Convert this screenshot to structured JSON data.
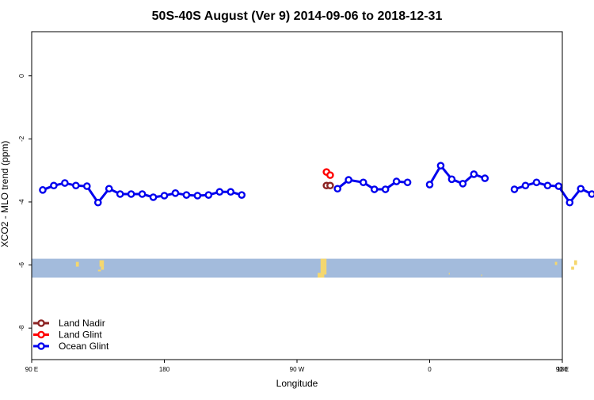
{
  "chart_data": {
    "type": "line",
    "title": "50S-40S August (Ver 9)   2014-09-06 to 2018-12-31",
    "xlabel": "Longitude",
    "ylabel": "XCO2 - MLO trend (ppm)",
    "xlim": [
      90,
      450
    ],
    "ylim": [
      -9.0,
      1.4
    ],
    "x_ticks": [
      {
        "value": 90,
        "label": "90 E"
      },
      {
        "value": 180,
        "label": "180"
      },
      {
        "value": 270,
        "label": "90 W"
      },
      {
        "value": 360,
        "label": "0"
      },
      {
        "value": 450,
        "label": "90 E"
      },
      {
        "value": 540,
        "label": "180"
      }
    ],
    "y_ticks": [
      {
        "value": 0,
        "label": "0"
      },
      {
        "value": -2,
        "label": "-2"
      },
      {
        "value": -4,
        "label": "-4"
      },
      {
        "value": -6,
        "label": "-6"
      },
      {
        "value": -8,
        "label": "-8"
      }
    ],
    "series": [
      {
        "name": "Land Nadir",
        "color": "#8b2323",
        "points": [
          [
            290,
            -3.48
          ],
          [
            292.5,
            -3.48
          ]
        ],
        "segments": [
          [
            0,
            1
          ]
        ]
      },
      {
        "name": "Land Glint",
        "color": "#ff0000",
        "points": [
          [
            290,
            -3.05
          ],
          [
            292.5,
            -3.15
          ]
        ],
        "segments": [
          [
            0,
            1
          ]
        ]
      },
      {
        "name": "Ocean Glint",
        "color": "#0000ee",
        "points": [
          [
            97.5,
            -3.62
          ],
          [
            105,
            -3.48
          ],
          [
            112.5,
            -3.4
          ],
          [
            120,
            -3.48
          ],
          [
            127.5,
            -3.5
          ],
          [
            135,
            -4.02
          ],
          [
            142.5,
            -3.58
          ],
          [
            150,
            -3.75
          ],
          [
            157.5,
            -3.75
          ],
          [
            165,
            -3.75
          ],
          [
            172.5,
            -3.85
          ],
          [
            180,
            -3.8
          ],
          [
            187.5,
            -3.72
          ],
          [
            195,
            -3.78
          ],
          [
            202.5,
            -3.8
          ],
          [
            210,
            -3.78
          ],
          [
            217.5,
            -3.68
          ],
          [
            225,
            -3.68
          ],
          [
            232.5,
            -3.78
          ],
          [
            297.5,
            -3.58
          ],
          [
            305,
            -3.3
          ],
          [
            315,
            -3.38
          ],
          [
            322.5,
            -3.6
          ],
          [
            330,
            -3.6
          ],
          [
            337.5,
            -3.35
          ],
          [
            345,
            -3.38
          ],
          [
            360,
            -3.45
          ],
          [
            367.5,
            -2.85
          ],
          [
            375,
            -3.28
          ],
          [
            382.5,
            -3.42
          ],
          [
            390,
            -3.12
          ],
          [
            397.5,
            -3.25
          ],
          [
            417.5,
            -3.6
          ],
          [
            425,
            -3.48
          ],
          [
            432.5,
            -3.38
          ],
          [
            440,
            -3.48
          ],
          [
            447.5,
            -3.5
          ],
          [
            455,
            -4.02
          ],
          [
            462.5,
            -3.58
          ],
          [
            470,
            -3.75
          ],
          [
            477.5,
            -3.75
          ]
        ],
        "segments": [
          [
            0,
            18
          ],
          [
            19,
            25
          ],
          [
            26,
            31
          ],
          [
            32,
            40
          ]
        ]
      }
    ],
    "background_band": {
      "y_from": -5.8,
      "y_to": -6.4,
      "color": "#a3bbdc",
      "land_color": "#f5d76e"
    },
    "grid": false,
    "legend_position": "bottom-left"
  }
}
